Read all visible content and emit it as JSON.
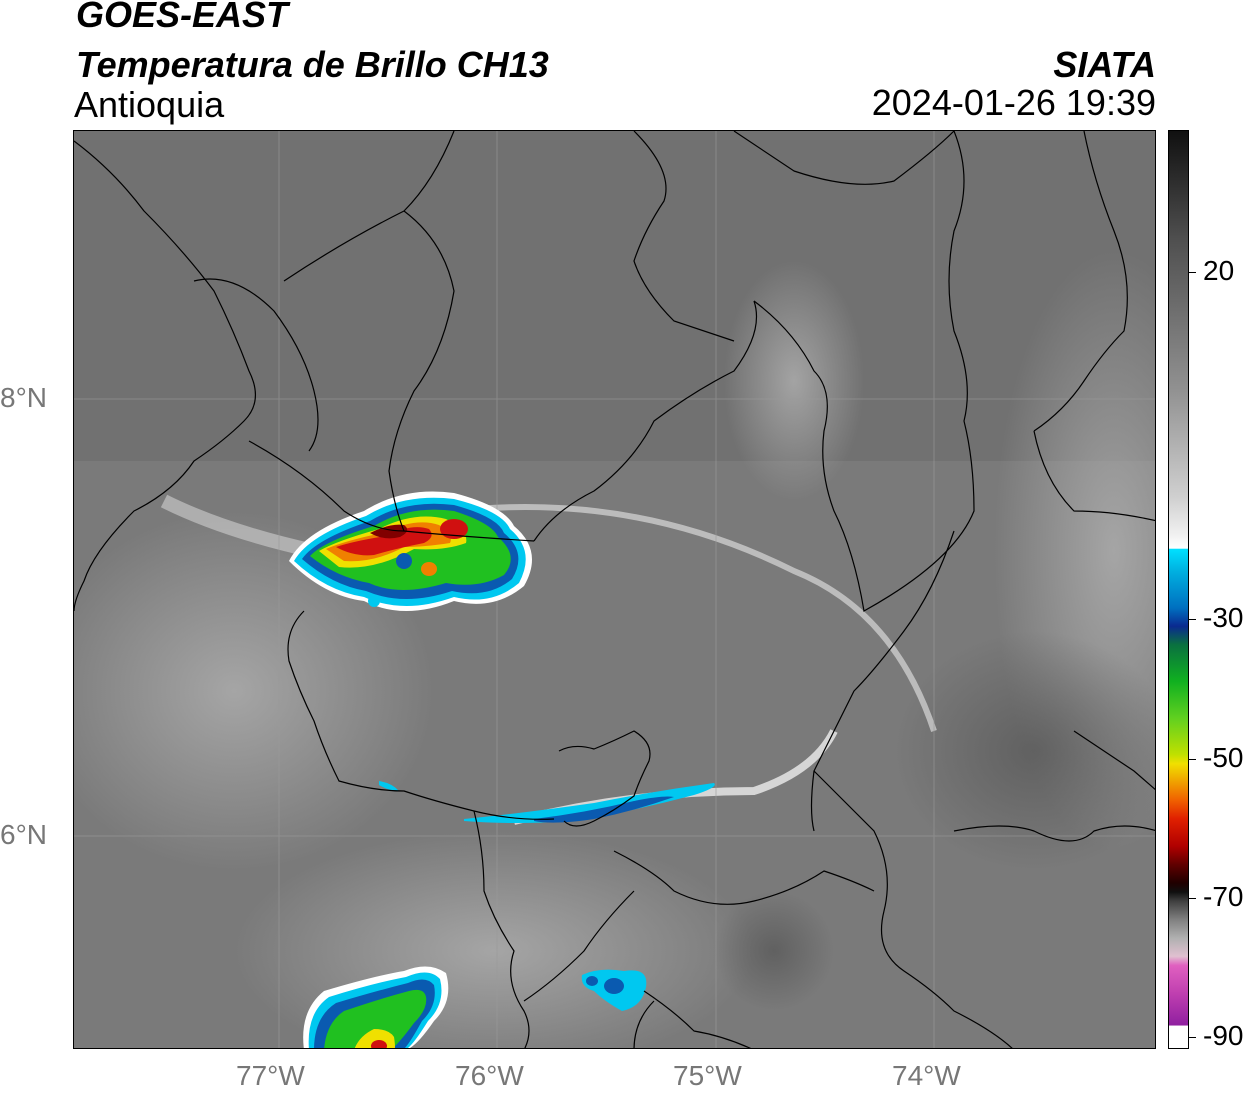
{
  "header": {
    "satellite": "GOES-EAST",
    "product": "Temperatura de Brillo CH13",
    "region": "Antioquia",
    "organization": "SIATA",
    "timestamp": "2024-01-26 19:39"
  },
  "axes": {
    "x_ticks": [
      "77°W",
      "76°W",
      "75°W",
      "74°W"
    ],
    "y_ticks": [
      "8°N",
      "6°N"
    ]
  },
  "colorbar": {
    "ticks": [
      "20",
      "-30",
      "-50",
      "-70",
      "-90"
    ]
  },
  "colors": {
    "background_gray": "#7a7a7a",
    "cold_red": "#d01010",
    "green": "#20c020",
    "blue": "#0a5ab0",
    "cyan": "#00c8f0"
  }
}
